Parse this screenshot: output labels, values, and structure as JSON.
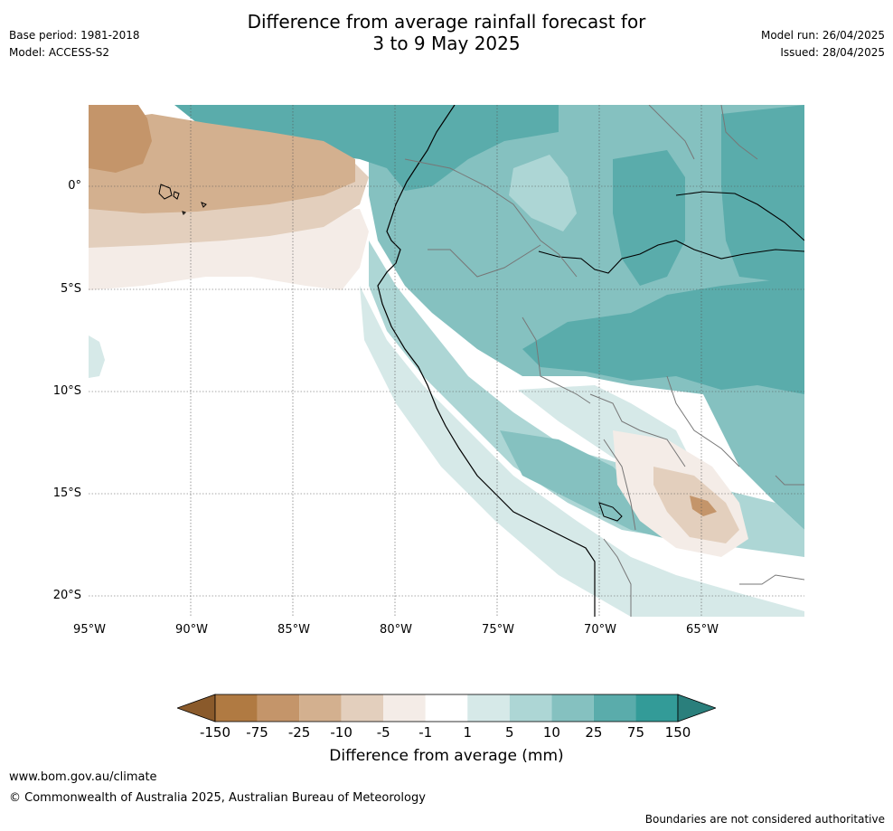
{
  "title_line1": "Difference from average rainfall forecast for",
  "title_line2": "3 to 9 May 2025",
  "base_period": "Base period: 1981-2018",
  "model": "Model: ACCESS-S2",
  "model_run": "Model run: 26/04/2025",
  "issued": "Issued: 28/04/2025",
  "map": {
    "lat_labels": [
      "0°",
      "5°S",
      "10°S",
      "15°S",
      "20°S"
    ],
    "lon_labels": [
      "95°W",
      "90°W",
      "85°W",
      "80°W",
      "75°W",
      "70°W",
      "65°W"
    ]
  },
  "colorbar": {
    "labels": [
      "-150",
      "-75",
      "-25",
      "-10",
      "-5",
      "-1",
      "1",
      "5",
      "10",
      "25",
      "75",
      "150"
    ],
    "colors": [
      "#8a5a2b",
      "#b07a42",
      "#c4956a",
      "#d3b08f",
      "#e3cfbd",
      "#f4ece7",
      "#ffffff",
      "#d6e9e8",
      "#add6d5",
      "#85c1c0",
      "#5aacab",
      "#339b98",
      "#2a7f7c"
    ],
    "title": "Difference from average (mm)"
  },
  "footer": {
    "url": "www.bom.gov.au/climate",
    "copyright": "© Commonwealth of Australia 2025, Australian Bureau of Meteorology",
    "disclaimer": "Boundaries are not considered authoritative"
  }
}
